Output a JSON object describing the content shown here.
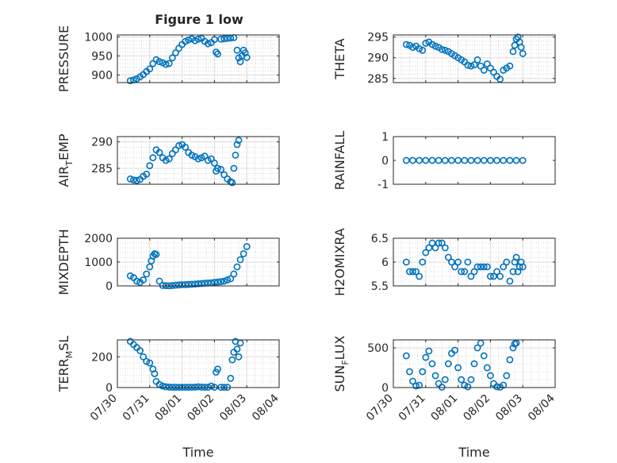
{
  "figure": {
    "title": "Figure 1 low"
  },
  "marker_color": "#0072BD",
  "x_axis": {
    "label": "Time",
    "ticks": [
      "07/30",
      "07/31",
      "08/01",
      "08/02",
      "08/03",
      "08/04"
    ],
    "lim": [
      0,
      5
    ]
  },
  "chart_data": [
    {
      "type": "scatter",
      "ylabel": "PRESSURE",
      "ylim": [
        880,
        1005
      ],
      "yticks": [
        900,
        950,
        1000
      ],
      "grid": true,
      "x": [
        0.4,
        0.5,
        0.6,
        0.7,
        0.8,
        0.9,
        1.0,
        1.1,
        1.2,
        1.3,
        1.4,
        1.5,
        1.6,
        1.7,
        1.8,
        1.9,
        2.0,
        2.1,
        2.2,
        2.3,
        2.4,
        2.5,
        2.6,
        2.7,
        2.8,
        2.9,
        3.0,
        3.05,
        3.1,
        3.2,
        3.3,
        3.4,
        3.5,
        3.6,
        3.7,
        3.75,
        3.8,
        3.85,
        3.9,
        3.95,
        4.0
      ],
      "y": [
        885,
        887,
        890,
        895,
        901,
        909,
        916,
        930,
        940,
        935,
        932,
        928,
        930,
        945,
        958,
        970,
        980,
        988,
        992,
        995,
        990,
        994,
        996,
        988,
        982,
        985,
        993,
        960,
        955,
        994,
        995,
        996,
        997,
        998,
        965,
        945,
        935,
        950,
        965,
        958,
        946
      ]
    },
    {
      "type": "scatter",
      "ylabel": "THETA",
      "ylim": [
        284,
        295.5
      ],
      "yticks": [
        285,
        290,
        295
      ],
      "grid": true,
      "x": [
        0.4,
        0.5,
        0.6,
        0.7,
        0.8,
        0.9,
        1.0,
        1.1,
        1.2,
        1.3,
        1.4,
        1.5,
        1.6,
        1.7,
        1.8,
        1.9,
        2.0,
        2.1,
        2.2,
        2.3,
        2.4,
        2.5,
        2.6,
        2.7,
        2.8,
        2.9,
        3.0,
        3.1,
        3.2,
        3.3,
        3.4,
        3.5,
        3.6,
        3.7,
        3.75,
        3.8,
        3.85,
        3.9,
        3.95,
        4.0
      ],
      "y": [
        293.2,
        293.0,
        292.5,
        292.8,
        292.2,
        291.8,
        293.5,
        293.8,
        293.2,
        292.8,
        292.5,
        292.0,
        291.8,
        291.5,
        291.0,
        290.5,
        290.0,
        289.5,
        289.0,
        288.2,
        288.0,
        288.3,
        289.5,
        288.0,
        287.0,
        288.5,
        287.5,
        286.5,
        285.5,
        284.8,
        287.0,
        287.5,
        288.0,
        291.5,
        293.0,
        294.5,
        295.0,
        293.8,
        292.5,
        291.0
      ]
    },
    {
      "type": "scatter",
      "ylabel": "AIR_TEMP",
      "ylim": [
        282,
        291
      ],
      "yticks": [
        285,
        290
      ],
      "grid": true,
      "x": [
        0.4,
        0.5,
        0.6,
        0.7,
        0.8,
        0.9,
        1.0,
        1.1,
        1.2,
        1.3,
        1.4,
        1.5,
        1.6,
        1.7,
        1.8,
        1.9,
        2.0,
        2.1,
        2.2,
        2.3,
        2.4,
        2.5,
        2.6,
        2.7,
        2.8,
        2.9,
        3.0,
        3.05,
        3.1,
        3.2,
        3.3,
        3.4,
        3.5,
        3.55,
        3.6,
        3.65,
        3.7,
        3.75
      ],
      "y": [
        283.0,
        282.8,
        282.7,
        282.9,
        283.5,
        283.9,
        285.5,
        287.0,
        288.5,
        288.0,
        287.0,
        286.5,
        286.8,
        287.8,
        288.5,
        289.3,
        289.5,
        289.0,
        288.0,
        287.5,
        287.2,
        286.8,
        287.0,
        287.3,
        286.5,
        286.8,
        286.0,
        284.5,
        285.0,
        284.8,
        283.8,
        283.0,
        282.5,
        282.3,
        285.0,
        287.5,
        289.5,
        290.3
      ]
    },
    {
      "type": "scatter",
      "ylabel": "RAINFALL",
      "ylim": [
        -1,
        1
      ],
      "yticks": [
        -1,
        0,
        1
      ],
      "grid": false,
      "x": [
        0.4,
        0.6,
        0.8,
        1.0,
        1.2,
        1.4,
        1.6,
        1.8,
        2.0,
        2.2,
        2.4,
        2.6,
        2.8,
        3.0,
        3.2,
        3.4,
        3.6,
        3.8,
        4.0
      ],
      "y": [
        0,
        0,
        0,
        0,
        0,
        0,
        0,
        0,
        0,
        0,
        0,
        0,
        0,
        0,
        0,
        0,
        0,
        0,
        0
      ]
    },
    {
      "type": "scatter",
      "ylabel": "MIXDEPTH",
      "ylim": [
        0,
        2000
      ],
      "yticks": [
        0,
        1000,
        2000
      ],
      "grid": true,
      "x": [
        0.4,
        0.5,
        0.6,
        0.7,
        0.8,
        0.9,
        1.0,
        1.05,
        1.1,
        1.15,
        1.2,
        1.3,
        1.4,
        1.5,
        1.6,
        1.7,
        1.8,
        1.9,
        2.0,
        2.1,
        2.2,
        2.3,
        2.4,
        2.5,
        2.6,
        2.7,
        2.8,
        2.9,
        3.0,
        3.1,
        3.2,
        3.3,
        3.4,
        3.5,
        3.6,
        3.7,
        3.8,
        3.9,
        4.0
      ],
      "y": [
        420,
        350,
        200,
        150,
        250,
        500,
        800,
        1050,
        1250,
        1350,
        1320,
        200,
        20,
        10,
        5,
        15,
        30,
        40,
        50,
        55,
        60,
        70,
        80,
        90,
        100,
        110,
        120,
        130,
        150,
        160,
        180,
        200,
        250,
        300,
        500,
        800,
        1100,
        1350,
        1650
      ]
    },
    {
      "type": "scatter",
      "ylabel": "H2OMIXRA",
      "ylim": [
        5.5,
        6.5
      ],
      "yticks": [
        5.5,
        6,
        6.5
      ],
      "grid": true,
      "x": [
        0.4,
        0.5,
        0.6,
        0.7,
        0.8,
        0.9,
        1.0,
        1.1,
        1.2,
        1.3,
        1.4,
        1.5,
        1.6,
        1.7,
        1.8,
        1.9,
        2.0,
        2.1,
        2.2,
        2.3,
        2.4,
        2.5,
        2.6,
        2.7,
        2.8,
        2.9,
        3.0,
        3.1,
        3.2,
        3.3,
        3.4,
        3.5,
        3.6,
        3.7,
        3.75,
        3.8,
        3.85,
        3.9,
        3.95,
        4.0
      ],
      "y": [
        6.0,
        5.8,
        5.8,
        5.8,
        5.7,
        6.0,
        6.2,
        6.3,
        6.4,
        6.3,
        6.4,
        6.4,
        6.3,
        6.1,
        6.0,
        5.9,
        6.0,
        5.8,
        5.8,
        6.0,
        5.7,
        5.8,
        5.9,
        5.9,
        5.9,
        5.9,
        5.7,
        5.7,
        5.8,
        5.7,
        5.9,
        6.0,
        5.6,
        5.8,
        6.0,
        6.1,
        5.8,
        5.9,
        6.0,
        5.9
      ]
    },
    {
      "type": "scatter",
      "ylabel": "TERR_MSL",
      "ylim": [
        0,
        310
      ],
      "yticks": [
        0,
        200
      ],
      "grid": true,
      "x": [
        0.4,
        0.5,
        0.6,
        0.7,
        0.8,
        0.9,
        1.0,
        1.1,
        1.15,
        1.2,
        1.3,
        1.4,
        1.5,
        1.6,
        1.7,
        1.8,
        1.9,
        2.0,
        2.1,
        2.2,
        2.3,
        2.4,
        2.5,
        2.6,
        2.7,
        2.8,
        2.9,
        3.0,
        3.05,
        3.1,
        3.2,
        3.3,
        3.4,
        3.5,
        3.55,
        3.6,
        3.65,
        3.7,
        3.75,
        3.8
      ],
      "y": [
        300,
        280,
        260,
        240,
        200,
        170,
        160,
        120,
        90,
        40,
        20,
        10,
        5,
        3,
        2,
        2,
        2,
        2,
        2,
        2,
        2,
        3,
        5,
        3,
        2,
        2,
        10,
        2,
        100,
        120,
        2,
        2,
        2,
        60,
        180,
        230,
        300,
        250,
        200,
        290
      ]
    },
    {
      "type": "scatter",
      "ylabel": "SUN_FLUX",
      "ylim": [
        0,
        600
      ],
      "yticks": [
        0,
        500
      ],
      "grid": true,
      "x": [
        0.4,
        0.5,
        0.6,
        0.7,
        0.8,
        0.9,
        1.0,
        1.1,
        1.2,
        1.3,
        1.4,
        1.5,
        1.6,
        1.7,
        1.8,
        1.9,
        2.0,
        2.1,
        2.2,
        2.3,
        2.4,
        2.5,
        2.6,
        2.7,
        2.8,
        2.9,
        3.0,
        3.1,
        3.2,
        3.3,
        3.4,
        3.5,
        3.6,
        3.7,
        3.75,
        3.8
      ],
      "y": [
        400,
        200,
        80,
        20,
        30,
        200,
        380,
        460,
        300,
        150,
        50,
        5,
        100,
        300,
        430,
        470,
        250,
        100,
        30,
        10,
        100,
        300,
        500,
        560,
        400,
        250,
        150,
        50,
        10,
        5,
        30,
        150,
        350,
        500,
        550,
        560
      ]
    }
  ]
}
